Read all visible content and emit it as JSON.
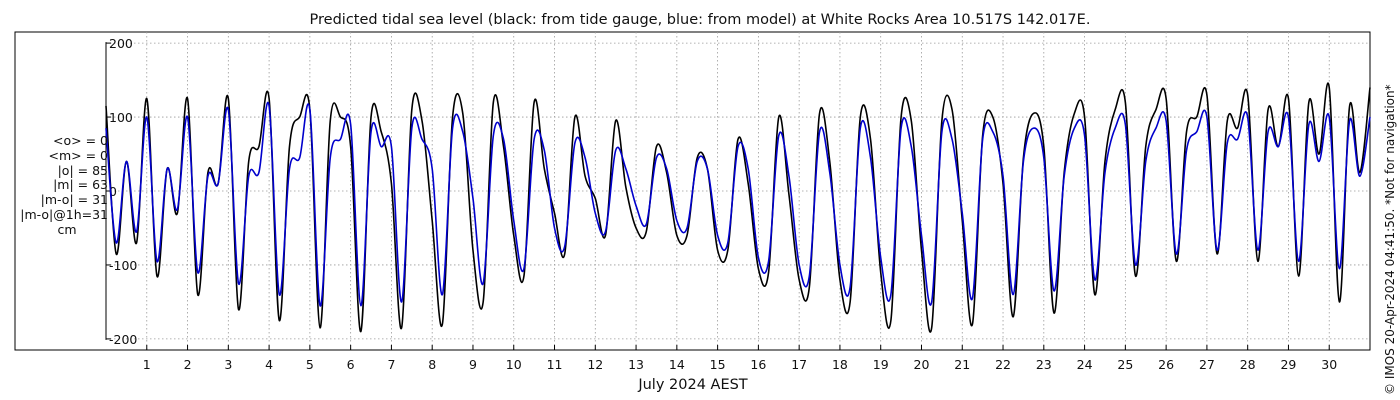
{
  "title": "Predicted tidal sea level (black: from tide gauge, blue: from model) at White Rocks Area 10.517S 142.017E.",
  "stats": {
    "mean_obs": "<o> = 0",
    "mean_model": "<m> = 0",
    "abs_obs": "|o| = 85",
    "abs_model": "|m| = 63",
    "abs_diff": "|m-o| = 31",
    "abs_diff_1h": "|m-o|@1h=31",
    "unit": "cm"
  },
  "credit": "© IMOS 20-Apr-2024 04:41:50. *Not for navigation*",
  "chart_data": {
    "type": "line",
    "title": "Predicted tidal sea level (black: from tide gauge, blue: from model) at White Rocks Area 10.517S 142.017E.",
    "xlabel": "July 2024 AEST",
    "ylabel": "",
    "xlim": [
      0,
      31
    ],
    "ylim": [
      -215,
      215
    ],
    "x_ticks": [
      1,
      2,
      3,
      4,
      5,
      6,
      7,
      8,
      9,
      10,
      11,
      12,
      13,
      14,
      15,
      16,
      17,
      18,
      19,
      20,
      21,
      22,
      23,
      24,
      25,
      26,
      27,
      28,
      29,
      30
    ],
    "y_ticks": [
      -200,
      -100,
      0,
      100,
      200
    ],
    "grid": true,
    "colors": {
      "tide_gauge": "#000000",
      "model": "#0000cc"
    },
    "series": [
      {
        "name": "from tide gauge",
        "color": "#000000",
        "x": [
          0,
          0.25,
          0.5,
          0.75,
          1,
          1.25,
          1.5,
          1.75,
          2,
          2.25,
          2.5,
          2.75,
          3,
          3.25,
          3.5,
          3.75,
          4,
          4.25,
          4.5,
          4.75,
          5,
          5.25,
          5.5,
          5.75,
          6,
          6.25,
          6.5,
          6.75,
          7,
          7.25,
          7.5,
          7.75,
          8,
          8.25,
          8.5,
          8.75,
          9,
          9.25,
          9.5,
          9.75,
          10,
          10.25,
          10.5,
          10.75,
          11,
          11.25,
          11.5,
          11.75,
          12,
          12.25,
          12.5,
          12.75,
          13,
          13.25,
          13.5,
          13.75,
          14,
          14.25,
          14.5,
          14.75,
          15,
          15.25,
          15.5,
          15.75,
          16,
          16.25,
          16.5,
          16.75,
          17,
          17.25,
          17.5,
          17.75,
          18,
          18.25,
          18.5,
          18.75,
          19,
          19.25,
          19.5,
          19.75,
          20,
          20.25,
          20.5,
          20.75,
          21,
          21.25,
          21.5,
          21.75,
          22,
          22.25,
          22.5,
          22.75,
          23,
          23.25,
          23.5,
          23.75,
          24,
          24.25,
          24.5,
          24.75,
          25,
          25.25,
          25.5,
          25.75,
          26,
          26.25,
          26.5,
          26.75,
          27,
          27.25,
          27.5,
          27.75,
          28,
          28.25,
          28.5,
          28.75,
          29,
          29.25,
          29.5,
          29.75,
          30,
          30.25,
          30.5,
          30.75,
          31
        ],
        "values": [
          115,
          -85,
          40,
          -70,
          125,
          -115,
          30,
          -30,
          125,
          -140,
          25,
          10,
          125,
          -160,
          40,
          60,
          125,
          -175,
          60,
          100,
          110,
          -185,
          95,
          100,
          60,
          -190,
          100,
          80,
          10,
          -185,
          110,
          95,
          -40,
          -180,
          100,
          105,
          -80,
          -150,
          120,
          60,
          -60,
          -115,
          120,
          30,
          -30,
          -85,
          100,
          20,
          -10,
          -60,
          95,
          5,
          -50,
          -55,
          60,
          25,
          -60,
          -60,
          45,
          30,
          -80,
          -80,
          70,
          10,
          -105,
          -110,
          100,
          -5,
          -120,
          -130,
          105,
          40,
          -120,
          -150,
          100,
          70,
          -110,
          -175,
          100,
          95,
          -80,
          -185,
          95,
          110,
          -40,
          -180,
          75,
          100,
          10,
          -170,
          45,
          105,
          60,
          -165,
          25,
          105,
          100,
          -140,
          40,
          110,
          120,
          -115,
          60,
          110,
          125,
          -95,
          80,
          100,
          130,
          -85,
          95,
          85,
          130,
          -95,
          110,
          60,
          125,
          -115,
          120,
          50,
          140,
          -150,
          115,
          25,
          140
        ]
      },
      {
        "name": "from model",
        "color": "#0000cc",
        "x": [
          0,
          0.25,
          0.5,
          0.75,
          1,
          1.25,
          1.5,
          1.75,
          2,
          2.25,
          2.5,
          2.75,
          3,
          3.25,
          3.5,
          3.75,
          4,
          4.25,
          4.5,
          4.75,
          5,
          5.25,
          5.5,
          5.75,
          6,
          6.25,
          6.5,
          6.75,
          7,
          7.25,
          7.5,
          7.75,
          8,
          8.25,
          8.5,
          8.75,
          9,
          9.25,
          9.5,
          9.75,
          10,
          10.25,
          10.5,
          10.75,
          11,
          11.25,
          11.5,
          11.75,
          12,
          12.25,
          12.5,
          12.75,
          13,
          13.25,
          13.5,
          13.75,
          14,
          14.25,
          14.5,
          14.75,
          15,
          15.25,
          15.5,
          15.75,
          16,
          16.25,
          16.5,
          16.75,
          17,
          17.25,
          17.5,
          17.75,
          18,
          18.25,
          18.5,
          18.75,
          19,
          19.25,
          19.5,
          19.75,
          20,
          20.25,
          20.5,
          20.75,
          21,
          21.25,
          21.5,
          21.75,
          22,
          22.25,
          22.5,
          22.75,
          23,
          23.25,
          23.5,
          23.75,
          24,
          24.25,
          24.5,
          24.75,
          25,
          25.25,
          25.5,
          25.75,
          26,
          26.25,
          26.5,
          26.75,
          27,
          27.25,
          27.5,
          27.75,
          28,
          28.25,
          28.5,
          28.75,
          29,
          29.25,
          29.5,
          29.75,
          30,
          30.25,
          30.5,
          30.75,
          31
        ],
        "values": [
          85,
          -70,
          40,
          -55,
          100,
          -95,
          30,
          -25,
          100,
          -110,
          20,
          10,
          110,
          -125,
          20,
          25,
          115,
          -140,
          30,
          45,
          110,
          -155,
          45,
          70,
          90,
          -155,
          80,
          60,
          60,
          -150,
          85,
          70,
          30,
          -140,
          85,
          80,
          -10,
          -125,
          75,
          70,
          -40,
          -105,
          70,
          55,
          -50,
          -75,
          65,
          45,
          -30,
          -55,
          55,
          30,
          -20,
          -45,
          45,
          30,
          -40,
          -50,
          40,
          30,
          -60,
          -70,
          60,
          30,
          -90,
          -95,
          75,
          20,
          -100,
          -115,
          80,
          25,
          -100,
          -130,
          85,
          45,
          -90,
          -140,
          85,
          60,
          -60,
          -150,
          80,
          70,
          -30,
          -145,
          70,
          80,
          20,
          -140,
          40,
          85,
          45,
          -135,
          20,
          85,
          75,
          -120,
          25,
          85,
          90,
          -100,
          40,
          85,
          95,
          -85,
          55,
          80,
          100,
          -80,
          65,
          70,
          100,
          -80,
          80,
          60,
          100,
          -95,
          90,
          40,
          100,
          -105,
          95,
          20,
          100
        ]
      }
    ]
  }
}
